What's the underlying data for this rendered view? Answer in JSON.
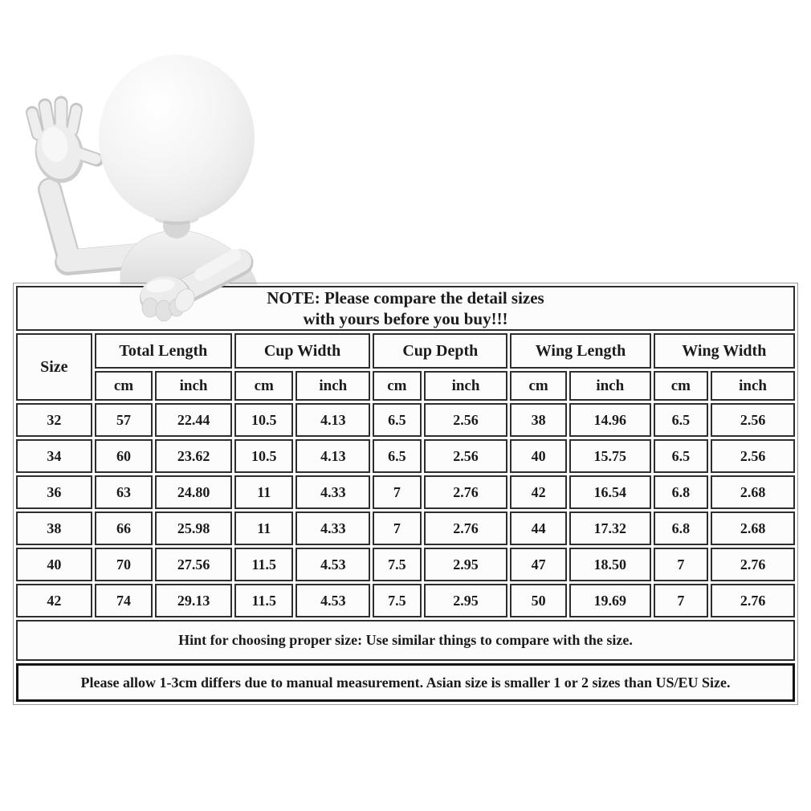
{
  "note": {
    "line1": "NOTE: Please compare the detail sizes",
    "line2": "with yours before you buy!!!"
  },
  "table": {
    "size_header": "Size",
    "groups": [
      "Total Length",
      "Cup Width",
      "Cup Depth",
      "Wing Length",
      "Wing Width"
    ],
    "unit_labels": {
      "cm": "cm",
      "inch": "inch"
    },
    "rows": [
      {
        "size": "32",
        "values": [
          "57",
          "22.44",
          "10.5",
          "4.13",
          "6.5",
          "2.56",
          "38",
          "14.96",
          "6.5",
          "2.56"
        ]
      },
      {
        "size": "34",
        "values": [
          "60",
          "23.62",
          "10.5",
          "4.13",
          "6.5",
          "2.56",
          "40",
          "15.75",
          "6.5",
          "2.56"
        ]
      },
      {
        "size": "36",
        "values": [
          "63",
          "24.80",
          "11",
          "4.33",
          "7",
          "2.76",
          "42",
          "16.54",
          "6.8",
          "2.68"
        ]
      },
      {
        "size": "38",
        "values": [
          "66",
          "25.98",
          "11",
          "4.33",
          "7",
          "2.76",
          "44",
          "17.32",
          "6.8",
          "2.68"
        ]
      },
      {
        "size": "40",
        "values": [
          "70",
          "27.56",
          "11.5",
          "4.53",
          "7.5",
          "2.95",
          "47",
          "18.50",
          "7",
          "2.76"
        ]
      },
      {
        "size": "42",
        "values": [
          "74",
          "29.13",
          "11.5",
          "4.53",
          "7.5",
          "2.95",
          "50",
          "19.69",
          "7",
          "2.76"
        ]
      }
    ]
  },
  "hint": "Hint for choosing proper size: Use similar things to compare with the size.",
  "disclaimer": "Please allow 1-3cm differs due to manual measurement. Asian size is smaller 1 or 2 sizes than US/EU Size.",
  "figure": {
    "icon": "waving-3d-person"
  },
  "colors": {
    "text": "#1b1b1b",
    "cell_border": "#2e2e2e",
    "disclaimer_border": "#141414",
    "outer_border": "#9a9a9a",
    "cell_bg": "#fcfcfc",
    "figure_light": "#f4f4f4",
    "figure_shade": "#cdcdcd"
  }
}
